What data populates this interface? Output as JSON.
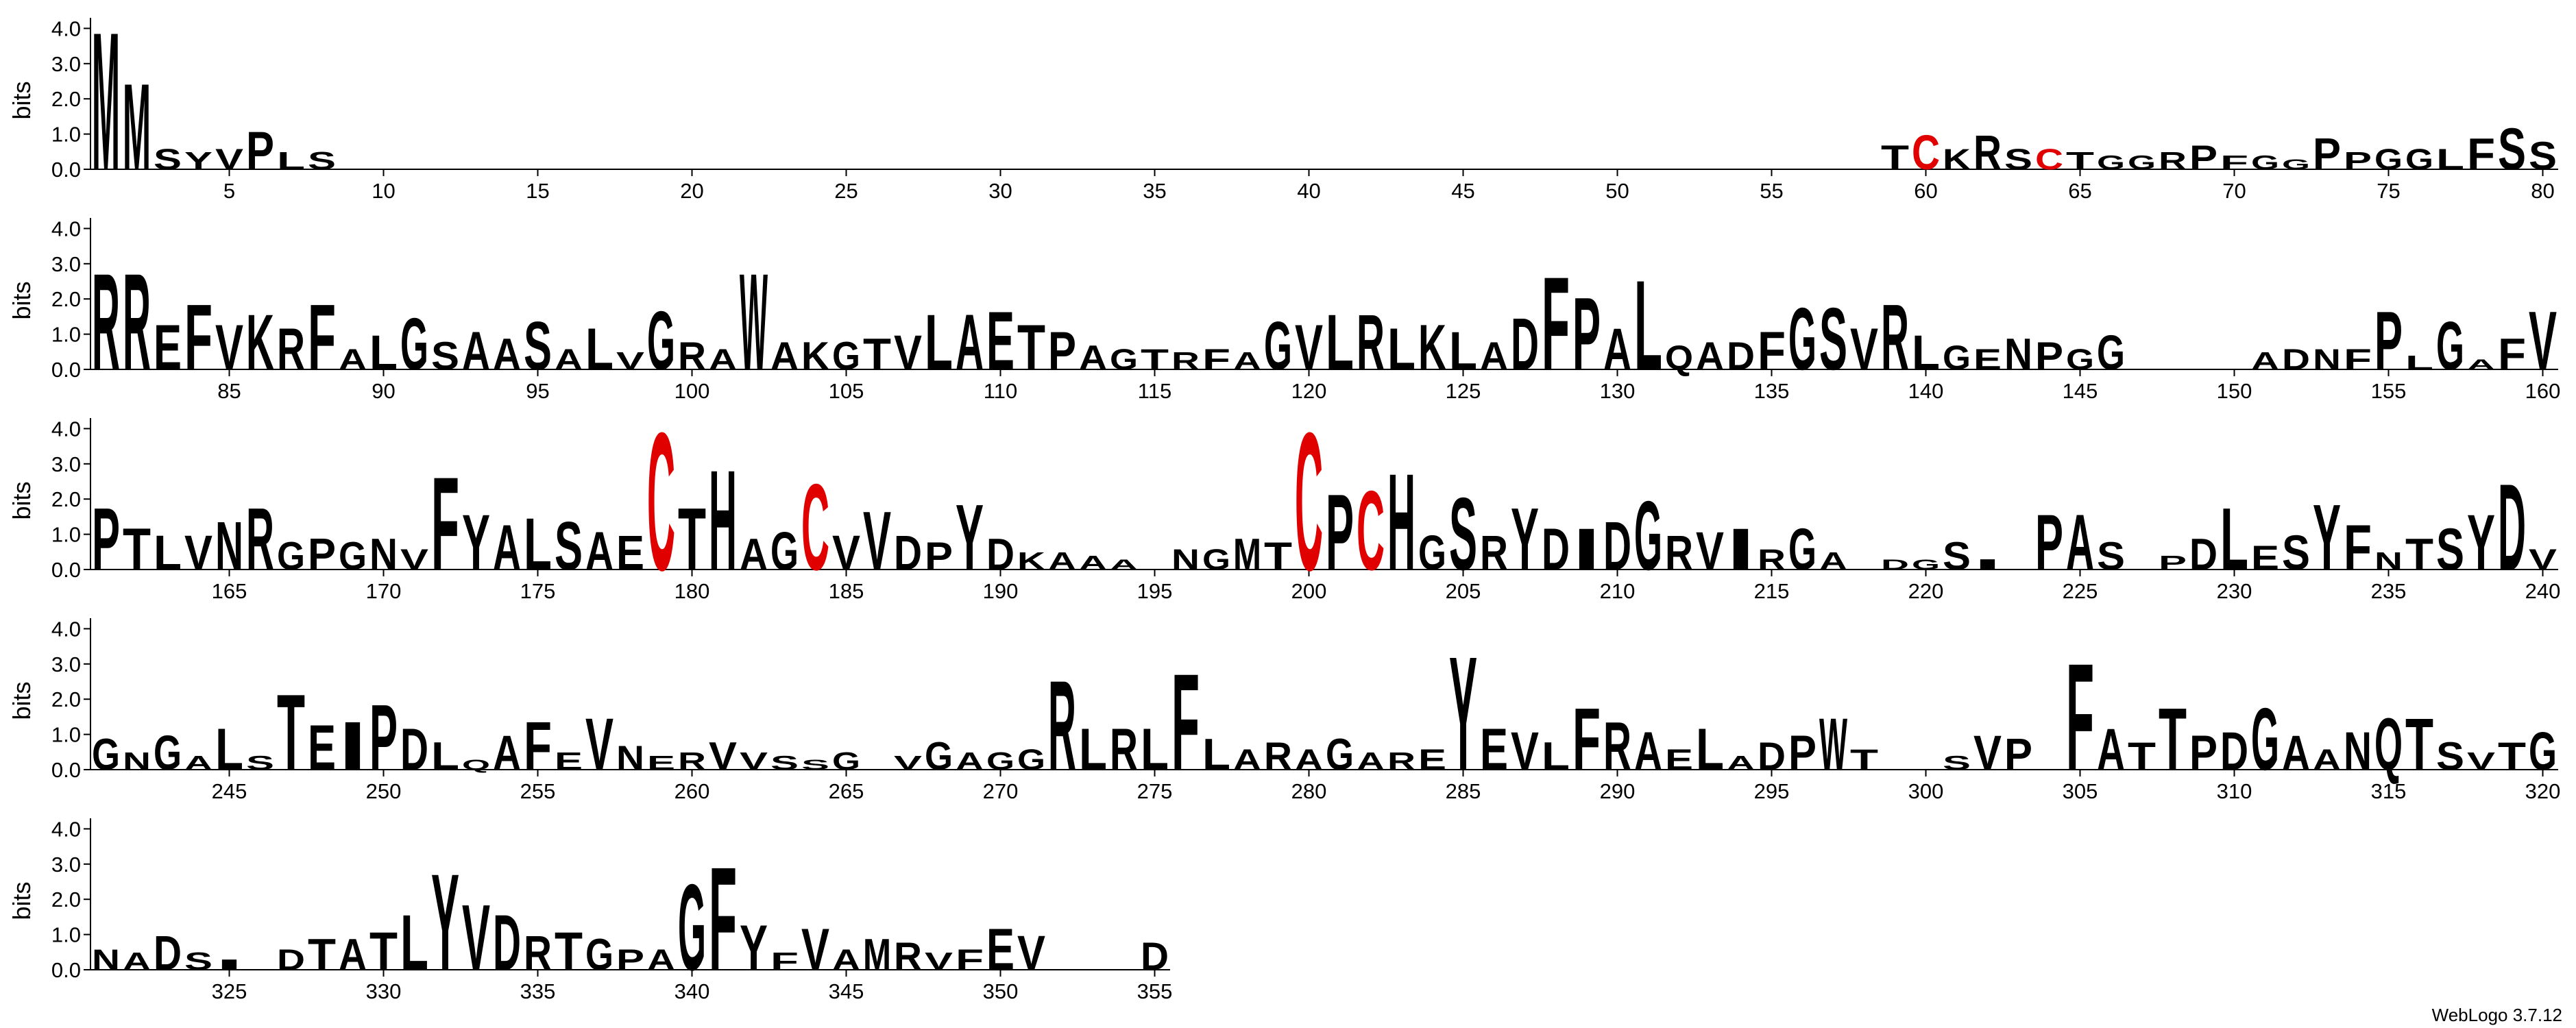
{
  "footer": "WebLogo 3.7.12",
  "chart_data": [
    {
      "type": "logo",
      "ylabel": "bits",
      "color": "#000000",
      "letter_colors": {
        "C": "#e00000"
      },
      "xlim": [
        0.5,
        80.5
      ],
      "xticks": [
        5,
        10,
        15,
        20,
        25,
        30,
        35,
        40,
        45,
        50,
        55,
        60,
        65,
        70,
        75,
        80
      ],
      "ylim": [
        0,
        4.3
      ],
      "yticks": [
        {
          "value": 0,
          "label": "0.0"
        },
        {
          "value": 1,
          "label": "1.0"
        },
        {
          "value": 2,
          "label": "2.0"
        },
        {
          "value": 3,
          "label": "3.0"
        },
        {
          "value": 4,
          "label": "4.0"
        }
      ],
      "x": [
        1,
        2,
        3,
        4,
        5,
        6,
        7,
        8,
        9,
        10,
        11,
        12,
        13,
        14,
        15,
        16,
        17,
        18,
        19,
        20,
        21,
        22,
        23,
        24,
        25,
        26,
        27,
        28,
        29,
        30,
        31,
        32,
        33,
        34,
        35,
        36,
        37,
        38,
        39,
        40,
        41,
        42,
        43,
        44,
        45,
        46,
        47,
        48,
        49,
        50,
        51,
        52,
        53,
        54,
        55,
        56,
        57,
        58,
        59,
        60,
        61,
        62,
        63,
        64,
        65,
        66,
        67,
        68,
        69,
        70,
        71,
        72,
        73,
        74,
        75,
        76,
        77,
        78,
        79,
        80
      ],
      "letters": [
        "M",
        "M",
        "S",
        "Y",
        "V",
        "P",
        "L",
        "S",
        null,
        null,
        null,
        null,
        null,
        null,
        null,
        null,
        null,
        null,
        null,
        null,
        null,
        null,
        null,
        null,
        null,
        null,
        null,
        null,
        null,
        null,
        null,
        null,
        null,
        null,
        null,
        null,
        null,
        null,
        null,
        null,
        null,
        null,
        null,
        null,
        null,
        null,
        null,
        null,
        null,
        null,
        null,
        null,
        null,
        null,
        null,
        null,
        null,
        null,
        "T",
        "C",
        "K",
        "R",
        "S",
        "C",
        "T",
        "G",
        "G",
        "R",
        "P",
        "F",
        "G",
        "G",
        "P",
        "P",
        "G",
        "G",
        "L",
        "F",
        "S",
        "S"
      ],
      "values": [
        4.0,
        2.5,
        0.6,
        0.5,
        0.6,
        1.1,
        0.5,
        0.5,
        null,
        null,
        null,
        null,
        null,
        null,
        null,
        null,
        null,
        null,
        null,
        null,
        null,
        null,
        null,
        null,
        null,
        null,
        null,
        null,
        null,
        null,
        null,
        null,
        null,
        null,
        null,
        null,
        null,
        null,
        null,
        null,
        null,
        null,
        null,
        null,
        null,
        null,
        null,
        null,
        null,
        null,
        null,
        null,
        null,
        null,
        null,
        null,
        null,
        null,
        0.7,
        1.0,
        0.6,
        1.0,
        0.6,
        0.6,
        0.5,
        0.4,
        0.4,
        0.5,
        0.7,
        0.4,
        0.4,
        0.3,
        0.9,
        0.5,
        0.6,
        0.6,
        0.6,
        0.9,
        1.2,
        0.8
      ]
    },
    {
      "type": "logo",
      "ylabel": "bits",
      "color": "#000000",
      "letter_colors": {
        "C": "#e00000"
      },
      "xlim": [
        80.5,
        160.5
      ],
      "xticks": [
        85,
        90,
        95,
        100,
        105,
        110,
        115,
        120,
        125,
        130,
        135,
        140,
        145,
        150,
        155,
        160
      ],
      "ylim": [
        0,
        4.3
      ],
      "yticks": [
        {
          "value": 0,
          "label": "0.0"
        },
        {
          "value": 1,
          "label": "1.0"
        },
        {
          "value": 2,
          "label": "2.0"
        },
        {
          "value": 3,
          "label": "3.0"
        },
        {
          "value": 4,
          "label": "4.0"
        }
      ],
      "x": [
        81,
        82,
        83,
        84,
        85,
        86,
        87,
        88,
        89,
        90,
        91,
        92,
        93,
        94,
        95,
        96,
        97,
        98,
        99,
        100,
        101,
        102,
        103,
        104,
        105,
        106,
        107,
        108,
        109,
        110,
        111,
        112,
        113,
        114,
        115,
        116,
        117,
        118,
        119,
        120,
        121,
        122,
        123,
        124,
        125,
        126,
        127,
        128,
        129,
        130,
        131,
        132,
        133,
        134,
        135,
        136,
        137,
        138,
        139,
        140,
        141,
        142,
        143,
        144,
        145,
        146,
        147,
        148,
        149,
        150,
        151,
        152,
        153,
        154,
        155,
        156,
        157,
        158,
        159,
        160
      ],
      "letters": [
        "R",
        "R",
        "E",
        "F",
        "V",
        "K",
        "R",
        "F",
        "A",
        "L",
        "G",
        "S",
        "A",
        "A",
        "S",
        "A",
        "L",
        "V",
        "G",
        "R",
        "A",
        "W",
        "A",
        "K",
        "G",
        "T",
        "V",
        "L",
        "A",
        "E",
        "T",
        "P",
        "A",
        "G",
        "T",
        "R",
        "F",
        "A",
        "G",
        "V",
        "L",
        "R",
        "L",
        "K",
        "L",
        "A",
        "D",
        "F",
        "P",
        "A",
        "L",
        "Q",
        "A",
        "D",
        "F",
        "G",
        "S",
        "V",
        "R",
        "L",
        "G",
        "E",
        "N",
        "P",
        "G",
        "G",
        null,
        null,
        null,
        null,
        "A",
        "D",
        "N",
        "F",
        "P",
        "L",
        "G",
        "A",
        "F",
        "V"
      ],
      "values": [
        2.8,
        2.8,
        1.3,
        1.9,
        1.3,
        1.6,
        1.2,
        1.9,
        0.6,
        1.0,
        1.5,
        0.8,
        1.1,
        0.9,
        1.4,
        0.6,
        1.2,
        0.5,
        1.7,
        0.8,
        0.6,
        2.8,
        0.8,
        0.8,
        0.8,
        0.9,
        1.0,
        1.6,
        1.6,
        1.7,
        1.3,
        1.1,
        0.7,
        0.6,
        0.6,
        0.5,
        0.6,
        0.5,
        1.4,
        1.3,
        1.6,
        1.6,
        1.2,
        1.3,
        1.1,
        0.8,
        1.5,
        2.7,
        2.1,
        1.2,
        2.6,
        0.7,
        0.8,
        0.8,
        1.1,
        1.8,
        1.8,
        1.2,
        1.9,
        1.0,
        0.7,
        0.6,
        0.9,
        0.8,
        0.6,
        1.0,
        null,
        null,
        null,
        null,
        0.5,
        0.6,
        0.6,
        0.6,
        1.7,
        0.4,
        1.4,
        0.3,
        0.9,
        1.7
      ]
    },
    {
      "type": "logo",
      "ylabel": "bits",
      "color": "#000000",
      "letter_colors": {
        "C": "#e00000"
      },
      "xlim": [
        160.5,
        240.5
      ],
      "xticks": [
        165,
        170,
        175,
        180,
        185,
        190,
        195,
        200,
        205,
        210,
        215,
        220,
        225,
        230,
        235,
        240
      ],
      "ylim": [
        0,
        4.3
      ],
      "yticks": [
        {
          "value": 0,
          "label": "0.0"
        },
        {
          "value": 1,
          "label": "1.0"
        },
        {
          "value": 2,
          "label": "2.0"
        },
        {
          "value": 3,
          "label": "3.0"
        },
        {
          "value": 4,
          "label": "4.0"
        }
      ],
      "x": [
        161,
        162,
        163,
        164,
        165,
        166,
        167,
        168,
        169,
        170,
        171,
        172,
        173,
        174,
        175,
        176,
        177,
        178,
        179,
        180,
        181,
        182,
        183,
        184,
        185,
        186,
        187,
        188,
        189,
        190,
        191,
        192,
        193,
        194,
        195,
        196,
        197,
        198,
        199,
        200,
        201,
        202,
        203,
        204,
        205,
        206,
        207,
        208,
        209,
        210,
        211,
        212,
        213,
        214,
        215,
        216,
        217,
        218,
        219,
        220,
        221,
        222,
        223,
        224,
        225,
        226,
        227,
        228,
        229,
        230,
        231,
        232,
        233,
        234,
        235,
        236,
        237,
        238,
        239,
        240
      ],
      "letters": [
        "P",
        "T",
        "L",
        "V",
        "N",
        "R",
        "G",
        "P",
        "G",
        "N",
        "V",
        "F",
        "Y",
        "A",
        "L",
        "S",
        "A",
        "E",
        "C",
        "T",
        "H",
        "A",
        "G",
        "C",
        "V",
        "V",
        "D",
        "P",
        "Y",
        "D",
        "K",
        "A",
        "A",
        "A",
        null,
        "N",
        "G",
        "M",
        "T",
        "C",
        "P",
        "C",
        "H",
        "G",
        "S",
        "R",
        "Y",
        "D",
        "I",
        "D",
        "G",
        "R",
        "V",
        "I",
        "R",
        "G",
        "A",
        null,
        "D",
        "G",
        "S",
        "I",
        null,
        "P",
        "A",
        "S",
        null,
        "P",
        "D",
        "L",
        "E",
        "S",
        "Y",
        "F",
        "N",
        "T",
        "S",
        "Y",
        "D",
        "V"
      ],
      "values": [
        1.8,
        1.2,
        1.0,
        1.0,
        1.4,
        1.8,
        0.8,
        0.9,
        0.8,
        0.9,
        0.6,
        2.7,
        1.6,
        1.3,
        1.5,
        1.4,
        1.1,
        1.0,
        4.0,
        1.8,
        2.9,
        0.9,
        1.1,
        2.5,
        1.0,
        1.7,
        1.0,
        0.8,
        1.9,
        0.9,
        0.5,
        0.5,
        0.4,
        0.3,
        null,
        0.6,
        0.6,
        0.9,
        0.8,
        4.0,
        2.2,
        2.3,
        2.8,
        1.0,
        2.1,
        1.0,
        1.8,
        1.2,
        1.2,
        1.4,
        2.0,
        1.0,
        1.1,
        1.2,
        0.6,
        1.2,
        0.5,
        null,
        0.3,
        0.3,
        0.8,
        0.3,
        null,
        1.6,
        1.6,
        0.8,
        null,
        0.4,
        0.9,
        1.8,
        0.7,
        1.0,
        1.9,
        1.3,
        0.5,
        0.9,
        1.2,
        1.6,
        2.5,
        0.6
      ]
    },
    {
      "type": "logo",
      "ylabel": "bits",
      "color": "#000000",
      "letter_colors": {
        "C": "#e00000"
      },
      "xlim": [
        240.5,
        320.5
      ],
      "xticks": [
        245,
        250,
        255,
        260,
        265,
        270,
        275,
        280,
        285,
        290,
        295,
        300,
        305,
        310,
        315,
        320
      ],
      "ylim": [
        0,
        4.3
      ],
      "yticks": [
        {
          "value": 0,
          "label": "0.0"
        },
        {
          "value": 1,
          "label": "1.0"
        },
        {
          "value": 2,
          "label": "2.0"
        },
        {
          "value": 3,
          "label": "3.0"
        },
        {
          "value": 4,
          "label": "4.0"
        }
      ],
      "x": [
        241,
        242,
        243,
        244,
        245,
        246,
        247,
        248,
        249,
        250,
        251,
        252,
        253,
        254,
        255,
        256,
        257,
        258,
        259,
        260,
        261,
        262,
        263,
        264,
        265,
        266,
        267,
        268,
        269,
        270,
        271,
        272,
        273,
        274,
        275,
        276,
        277,
        278,
        279,
        280,
        281,
        282,
        283,
        284,
        285,
        286,
        287,
        288,
        289,
        290,
        291,
        292,
        293,
        294,
        295,
        296,
        297,
        298,
        299,
        300,
        301,
        302,
        303,
        304,
        305,
        306,
        307,
        308,
        309,
        310,
        311,
        312,
        313,
        314,
        315,
        316,
        317,
        318,
        319,
        320
      ],
      "letters": [
        "G",
        "N",
        "G",
        "A",
        "L",
        "S",
        "T",
        "E",
        "I",
        "P",
        "D",
        "L",
        "Q",
        "A",
        "F",
        "E",
        "V",
        "N",
        "E",
        "R",
        "V",
        "V",
        "S",
        "S",
        "G",
        null,
        "V",
        "G",
        "A",
        "G",
        "G",
        "R",
        "L",
        "R",
        "L",
        "F",
        "L",
        "A",
        "R",
        "A",
        "G",
        "A",
        "R",
        "E",
        "Y",
        "E",
        "V",
        "L",
        "F",
        "R",
        "A",
        "E",
        "L",
        "A",
        "D",
        "P",
        "W",
        "T",
        null,
        null,
        "S",
        "V",
        "P",
        null,
        "F",
        "A",
        "T",
        "T",
        "P",
        "D",
        "G",
        "A",
        "A",
        "N",
        "Q",
        "T",
        "S",
        "V",
        "T",
        "G"
      ],
      "values": [
        0.9,
        0.5,
        1.0,
        0.4,
        1.2,
        0.4,
        2.2,
        1.3,
        1.4,
        1.9,
        1.2,
        0.8,
        0.3,
        1.0,
        1.4,
        0.5,
        1.5,
        0.7,
        0.4,
        0.5,
        0.8,
        0.5,
        0.4,
        0.3,
        0.5,
        null,
        0.4,
        0.8,
        0.5,
        0.5,
        0.6,
        2.6,
        1.2,
        1.2,
        1.2,
        2.8,
        0.9,
        0.6,
        0.8,
        0.6,
        0.9,
        0.5,
        0.5,
        0.6,
        3.3,
        1.2,
        1.1,
        0.8,
        1.8,
        1.4,
        1.1,
        0.6,
        1.2,
        0.4,
        0.8,
        1.0,
        1.5,
        0.6,
        null,
        null,
        0.4,
        1.0,
        0.9,
        null,
        3.1,
        1.2,
        0.8,
        1.8,
        1.0,
        1.1,
        1.8,
        1.0,
        0.6,
        1.1,
        1.5,
        1.5,
        0.8,
        0.5,
        0.8,
        1.1
      ]
    },
    {
      "type": "logo",
      "ylabel": "bits",
      "color": "#000000",
      "letter_colors": {
        "C": "#e00000"
      },
      "xlim": [
        320.5,
        355.5
      ],
      "xticks": [
        325,
        330,
        335,
        340,
        345,
        350,
        355
      ],
      "ylim": [
        0,
        4.3
      ],
      "yticks": [
        {
          "value": 0,
          "label": "0.0"
        },
        {
          "value": 1,
          "label": "1.0"
        },
        {
          "value": 2,
          "label": "2.0"
        },
        {
          "value": 3,
          "label": "3.0"
        },
        {
          "value": 4,
          "label": "4.0"
        }
      ],
      "x": [
        321,
        322,
        323,
        324,
        325,
        326,
        327,
        328,
        329,
        330,
        331,
        332,
        333,
        334,
        335,
        336,
        337,
        338,
        339,
        340,
        341,
        342,
        343,
        344,
        345,
        346,
        347,
        348,
        349,
        350,
        351,
        352,
        353,
        354,
        355
      ],
      "letters": [
        "N",
        "A",
        "D",
        "S",
        "I",
        null,
        "D",
        "T",
        "A",
        "T",
        "L",
        "Y",
        "V",
        "D",
        "R",
        "T",
        "G",
        "P",
        "A",
        "G",
        "F",
        "Y",
        "F",
        "V",
        "A",
        "M",
        "R",
        "V",
        "F",
        "E",
        "V",
        null,
        null,
        null,
        "D"
      ],
      "values": [
        0.6,
        0.5,
        1.0,
        0.5,
        0.3,
        null,
        0.6,
        0.9,
        0.9,
        1.1,
        1.6,
        2.8,
        1.9,
        1.6,
        1.0,
        1.1,
        0.9,
        0.6,
        0.6,
        2.5,
        3.0,
        1.3,
        0.5,
        1.2,
        0.6,
        0.9,
        0.8,
        0.5,
        0.6,
        1.2,
        1.0,
        null,
        null,
        null,
        0.8
      ]
    }
  ]
}
